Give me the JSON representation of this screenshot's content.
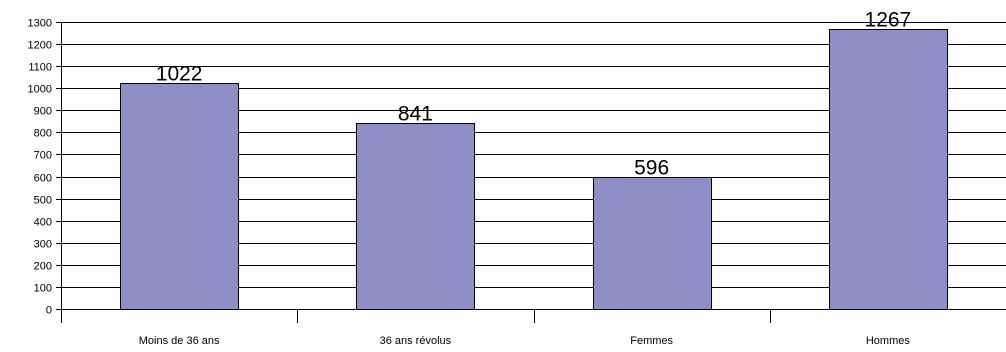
{
  "chart_data": {
    "type": "bar",
    "categories": [
      "Moins de 36 ans",
      "36 ans révolus",
      "Femmes",
      "Hommes"
    ],
    "values": [
      1022,
      841,
      596,
      1267
    ],
    "data_labels": [
      "1022",
      "841",
      "596",
      "1267"
    ],
    "title": "",
    "xlabel": "",
    "ylabel": "",
    "ylim": [
      0,
      1300
    ],
    "y_ticks": [
      0,
      100,
      200,
      300,
      400,
      500,
      600,
      700,
      800,
      900,
      1000,
      1100,
      1200,
      1300
    ],
    "y_tick_labels": [
      "0",
      "100",
      "200",
      "300",
      "400",
      "500",
      "600",
      "700",
      "800",
      "900",
      "1000",
      "1100",
      "1200",
      "1300"
    ],
    "grid": true,
    "legend": "none",
    "colors": {
      "bar_fill": "#8E8FC6",
      "bar_stroke": "#000000",
      "grid": "#000000",
      "background": "#FFFFFF"
    }
  }
}
